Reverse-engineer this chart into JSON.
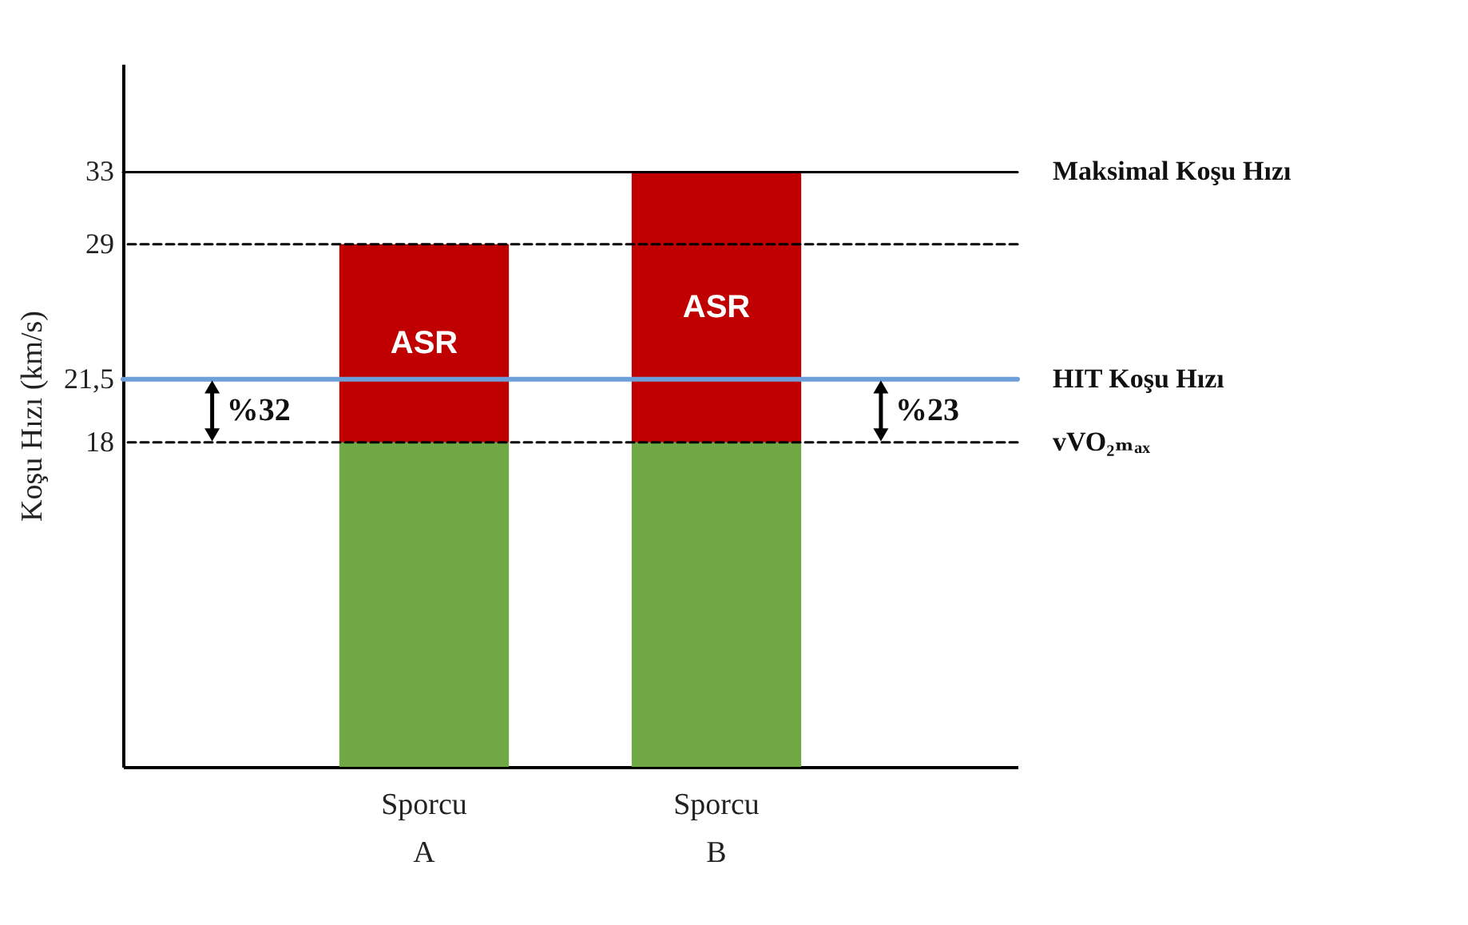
{
  "chart_data": {
    "type": "bar",
    "stacked": true,
    "ylabel": "Koşu Hızı (km/s)",
    "categories": [
      "Sporcu A",
      "Sporcu B"
    ],
    "series": [
      {
        "color": "#70a845",
        "values": [
          18,
          18
        ]
      },
      {
        "color": "#c00000",
        "values": [
          11,
          15
        ]
      }
    ],
    "ylim": [
      0,
      39
    ],
    "yticks": [
      18,
      {
        "value": 21.5,
        "label": "21,5"
      },
      29,
      33
    ],
    "grid": false,
    "legend": false,
    "ref_lines": [
      {
        "axis": "y",
        "value": 33,
        "label": "Maksimal Koşu Hızı",
        "color": "#000000",
        "line_style": "solid"
      },
      {
        "axis": "y",
        "value": 29,
        "color": "#000000",
        "line_style": "dashed"
      },
      {
        "axis": "y",
        "value": 21.5,
        "label": "HIT Koşu Hızı",
        "color": "#6f9fd8",
        "line_style": "solid"
      },
      {
        "axis": "y",
        "value": 18,
        "label": "vVO₂ₘₐₓ",
        "color": "#000000",
        "line_style": "dashed"
      }
    ],
    "annotations": [
      "ASR",
      "ASR",
      "%32",
      "%23"
    ]
  }
}
